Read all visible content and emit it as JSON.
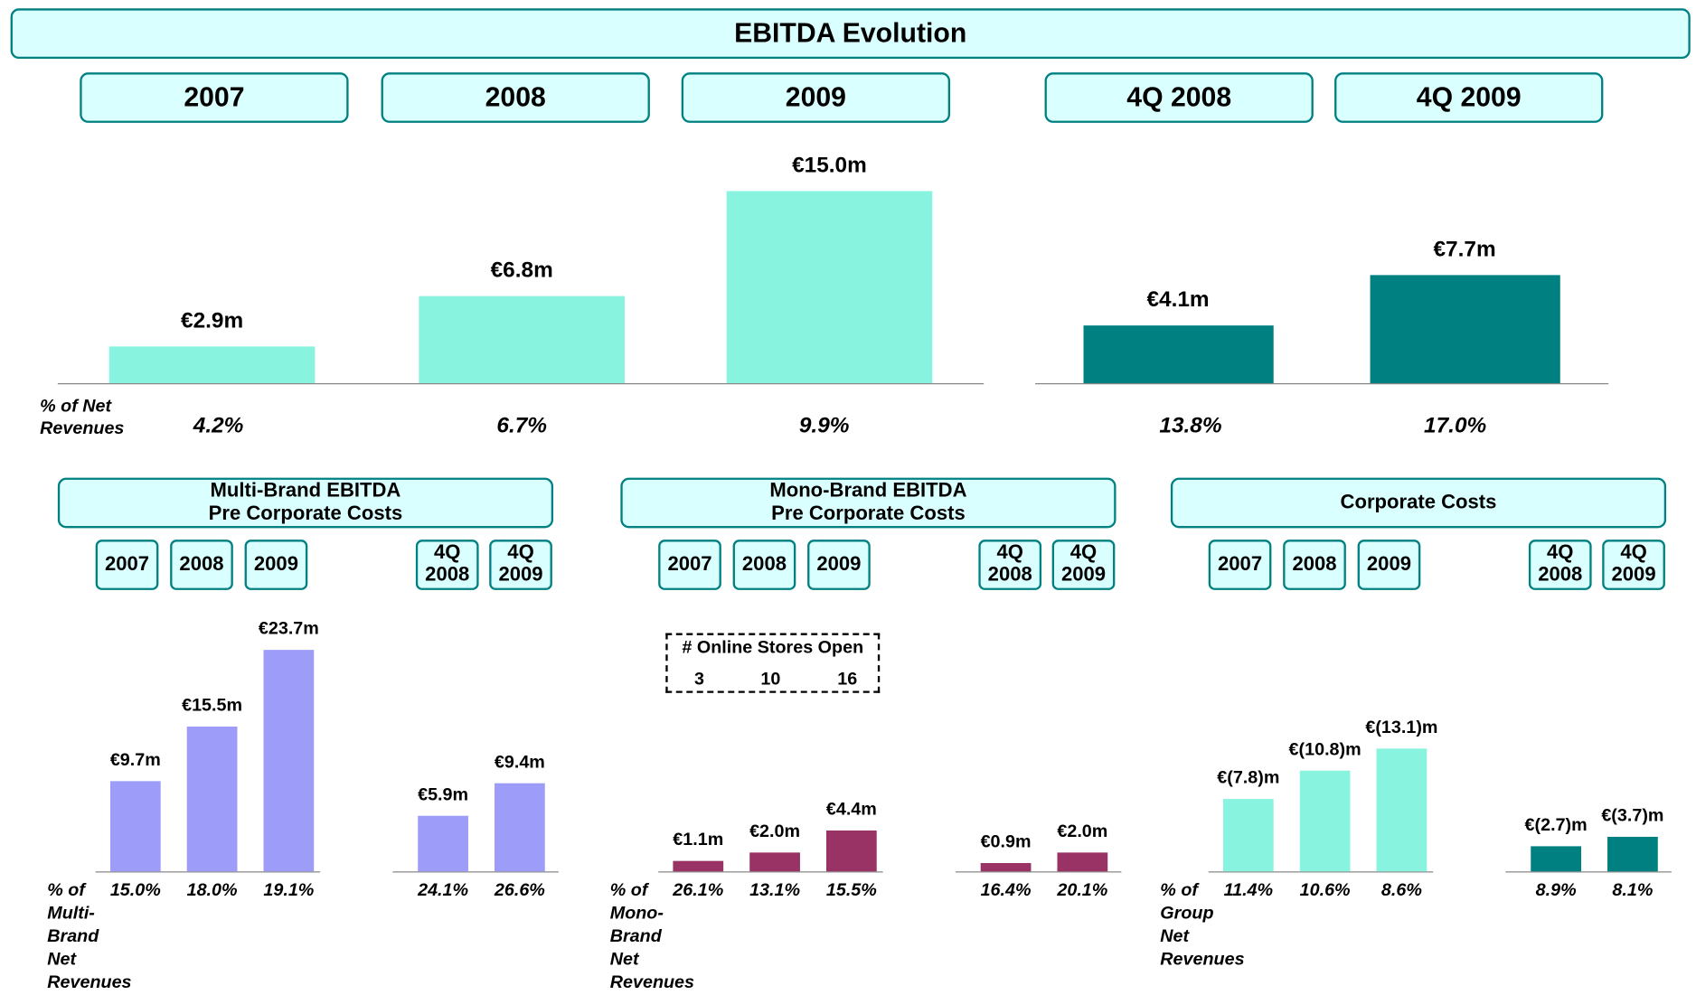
{
  "chart_data": [
    {
      "type": "bar",
      "title": "EBITDA Evolution",
      "categories": [
        "2007",
        "2008",
        "2009",
        "4Q 2008",
        "4Q 2009"
      ],
      "values": [
        2.9,
        6.8,
        15.0,
        4.1,
        7.7
      ],
      "value_labels": [
        "€2.9m",
        "€6.8m",
        "€15.0m",
        "€4.1m",
        "€7.7m"
      ],
      "colors": [
        "#88f4df",
        "#88f4df",
        "#88f4df",
        "#008080",
        "#008080"
      ],
      "ratio": {
        "label": "% of Net Revenues",
        "values": [
          4.2,
          6.7,
          9.9,
          13.8,
          17.0
        ],
        "value_labels": [
          "4.2%",
          "6.7%",
          "9.9%",
          "13.8%",
          "17.0%"
        ]
      }
    },
    {
      "type": "bar",
      "title": "Multi-Brand EBITDA\nPre Corporate Costs",
      "categories": [
        "2007",
        "2008",
        "2009",
        "4Q 2008",
        "4Q 2009"
      ],
      "values": [
        9.7,
        15.5,
        23.7,
        5.9,
        9.4
      ],
      "value_labels": [
        "€9.7m",
        "€15.5m",
        "€23.7m",
        "€5.9m",
        "€9.4m"
      ],
      "colors": [
        "#9d9df9",
        "#9d9df9",
        "#9d9df9",
        "#9d9df9",
        "#9d9df9"
      ],
      "ratio": {
        "label": "% of Multi-Brand Net Revenues",
        "values": [
          15.0,
          18.0,
          19.1,
          24.1,
          26.6
        ],
        "value_labels": [
          "15.0%",
          "18.0%",
          "19.1%",
          "24.1%",
          "26.6%"
        ]
      }
    },
    {
      "type": "bar",
      "title": "Mono-Brand EBITDA\nPre Corporate Costs",
      "categories": [
        "2007",
        "2008",
        "2009",
        "4Q 2008",
        "4Q 2009"
      ],
      "values": [
        1.1,
        2.0,
        4.4,
        0.9,
        2.0
      ],
      "value_labels": [
        "€1.1m",
        "€2.0m",
        "€4.4m",
        "€0.9m",
        "€2.0m"
      ],
      "colors": [
        "#993366",
        "#993366",
        "#993366",
        "#993366",
        "#993366"
      ],
      "online_stores": {
        "label": "# Online Stores Open",
        "values": [
          3,
          10,
          16
        ]
      },
      "ratio": {
        "label": "% of Mono-Brand Net Revenues",
        "values": [
          26.1,
          13.1,
          15.5,
          16.4,
          20.1
        ],
        "value_labels": [
          "26.1%",
          "13.1%",
          "15.5%",
          "16.4%",
          "20.1%"
        ]
      }
    },
    {
      "type": "bar",
      "title": "Corporate Costs",
      "categories": [
        "2007",
        "2008",
        "2009",
        "4Q 2008",
        "4Q 2009"
      ],
      "values": [
        -7.8,
        -10.8,
        -13.1,
        -2.7,
        -3.7
      ],
      "value_labels": [
        "€(7.8)m",
        "€(10.8)m",
        "€(13.1)m",
        "€(2.7)m",
        "€(3.7)m"
      ],
      "colors": [
        "#88f4df",
        "#88f4df",
        "#88f4df",
        "#008080",
        "#008080"
      ],
      "ratio": {
        "label": "% of Group Net Revenues",
        "values": [
          11.4,
          10.6,
          8.6,
          8.9,
          8.1
        ],
        "value_labels": [
          "11.4%",
          "10.6%",
          "8.6%",
          "8.9%",
          "8.1%"
        ]
      }
    }
  ]
}
